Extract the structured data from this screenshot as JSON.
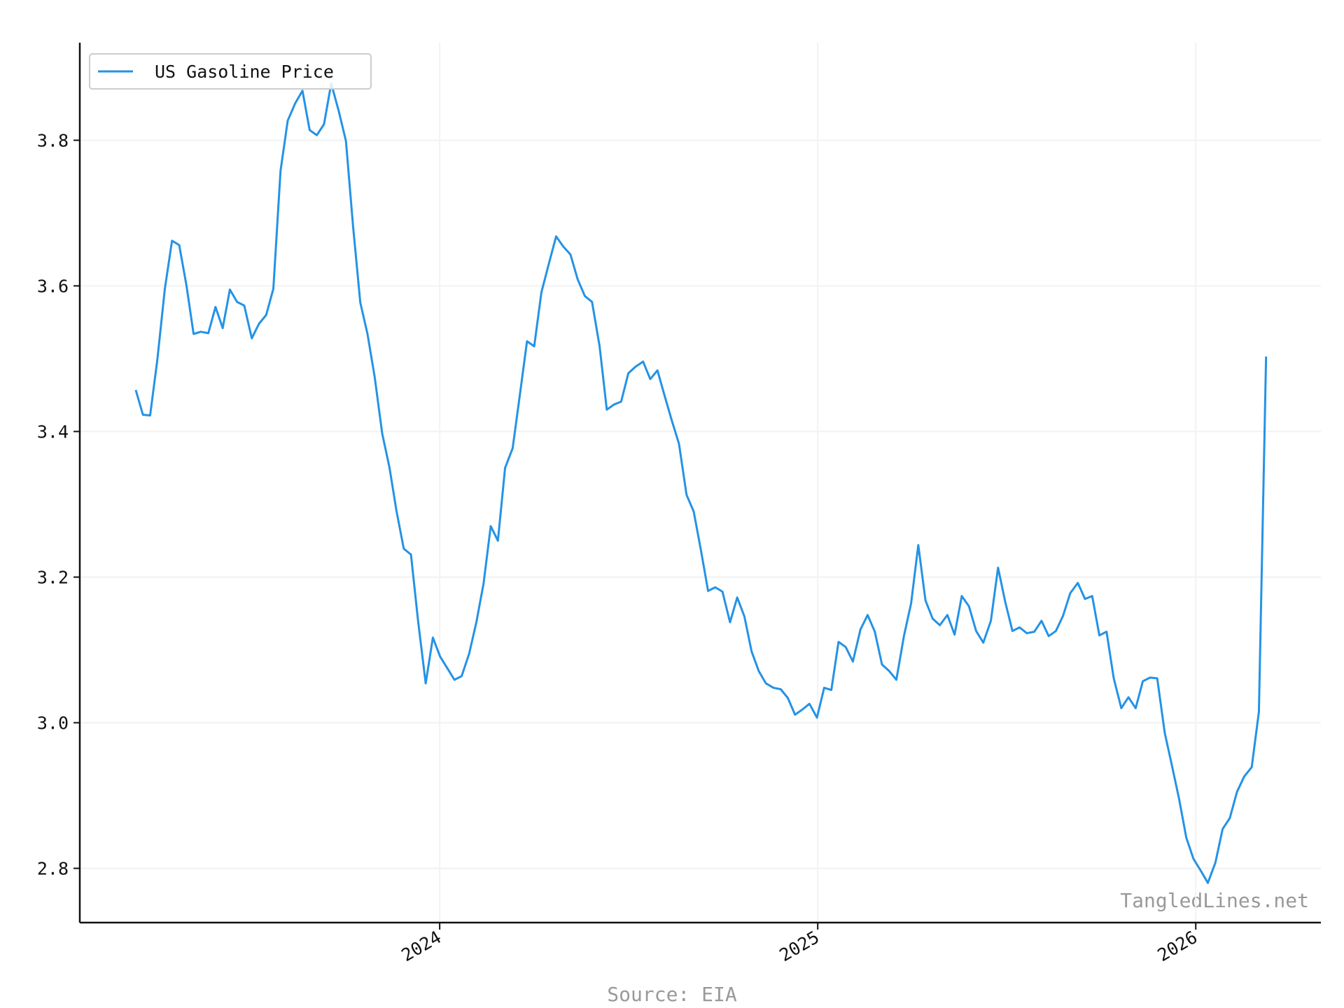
{
  "chart_data": {
    "type": "line",
    "watermark": "TangledLines.net",
    "source": "Source: EIA",
    "legend": "upper left",
    "grid": true,
    "xlim": [
      2023.048,
      2026.331
    ],
    "xticks": [
      2024,
      2025,
      2026
    ],
    "ylim": [
      2.7255,
      3.934
    ],
    "yticks": [
      {
        "value": 2.8,
        "label": "2.8"
      },
      {
        "value": 3.0,
        "label": "3.0"
      },
      {
        "value": 3.2,
        "label": "3.2"
      },
      {
        "value": 3.4,
        "label": "3.4"
      },
      {
        "value": 3.6,
        "label": "3.6"
      },
      {
        "value": 3.8,
        "label": "3.8"
      }
    ],
    "x": [
      2023.196,
      2023.215,
      2023.234,
      2023.253,
      2023.273,
      2023.292,
      2023.311,
      2023.33,
      2023.349,
      2023.368,
      2023.388,
      2023.407,
      2023.426,
      2023.445,
      2023.464,
      2023.483,
      2023.503,
      2023.522,
      2023.541,
      2023.56,
      2023.579,
      2023.598,
      2023.618,
      2023.637,
      2023.656,
      2023.675,
      2023.694,
      2023.713,
      2023.733,
      2023.752,
      2023.771,
      2023.79,
      2023.809,
      2023.828,
      2023.848,
      2023.867,
      2023.886,
      2023.905,
      2023.924,
      2023.943,
      2023.963,
      2023.982,
      2024.001,
      2024.02,
      2024.039,
      2024.058,
      2024.078,
      2024.097,
      2024.116,
      2024.135,
      2024.154,
      2024.173,
      2024.193,
      2024.212,
      2024.231,
      2024.25,
      2024.269,
      2024.288,
      2024.308,
      2024.327,
      2024.346,
      2024.365,
      2024.384,
      2024.403,
      2024.423,
      2024.442,
      2024.461,
      2024.48,
      2024.499,
      2024.518,
      2024.538,
      2024.557,
      2024.576,
      2024.595,
      2024.614,
      2024.633,
      2024.653,
      2024.672,
      2024.691,
      2024.71,
      2024.729,
      2024.748,
      2024.768,
      2024.787,
      2024.806,
      2024.825,
      2024.844,
      2024.863,
      2024.883,
      2024.902,
      2024.921,
      2024.94,
      2024.959,
      2024.978,
      2024.998,
      2025.017,
      2025.036,
      2025.055,
      2025.074,
      2025.093,
      2025.113,
      2025.132,
      2025.151,
      2025.17,
      2025.189,
      2025.208,
      2025.228,
      2025.247,
      2025.266,
      2025.285,
      2025.304,
      2025.323,
      2025.343,
      2025.362,
      2025.381,
      2025.4,
      2025.419,
      2025.438,
      2025.458,
      2025.477,
      2025.496,
      2025.515,
      2025.534,
      2025.553,
      2025.573,
      2025.592,
      2025.611,
      2025.63,
      2025.649,
      2025.668,
      2025.688,
      2025.707,
      2025.726,
      2025.745,
      2025.764,
      2025.783,
      2025.803,
      2025.822,
      2025.841,
      2025.86,
      2025.879,
      2025.898,
      2025.918,
      2025.937,
      2025.956,
      2025.975,
      2025.994,
      2026.013,
      2026.032,
      2026.052,
      2026.071,
      2026.09,
      2026.109,
      2026.128,
      2026.148,
      2026.167,
      2026.186
    ],
    "series": [
      {
        "name": "US Gasoline Price",
        "color": "#2492e6",
        "values": [
          3.457,
          3.423,
          3.422,
          3.498,
          3.596,
          3.662,
          3.656,
          3.601,
          3.534,
          3.537,
          3.535,
          3.571,
          3.542,
          3.595,
          3.578,
          3.573,
          3.528,
          3.548,
          3.56,
          3.596,
          3.758,
          3.827,
          3.851,
          3.868,
          3.814,
          3.807,
          3.822,
          3.878,
          3.84,
          3.799,
          3.681,
          3.577,
          3.534,
          3.475,
          3.397,
          3.351,
          3.29,
          3.239,
          3.231,
          3.139,
          3.054,
          3.117,
          3.091,
          3.075,
          3.059,
          3.064,
          3.095,
          3.138,
          3.191,
          3.27,
          3.25,
          3.35,
          3.377,
          3.45,
          3.524,
          3.517,
          3.591,
          3.629,
          3.668,
          3.654,
          3.643,
          3.609,
          3.586,
          3.578,
          3.517,
          3.43,
          3.437,
          3.441,
          3.48,
          3.489,
          3.496,
          3.472,
          3.484,
          3.449,
          3.415,
          3.383,
          3.313,
          3.29,
          3.237,
          3.181,
          3.186,
          3.18,
          3.138,
          3.172,
          3.146,
          3.098,
          3.071,
          3.054,
          3.048,
          3.046,
          3.034,
          3.011,
          3.018,
          3.026,
          3.007,
          3.048,
          3.045,
          3.111,
          3.104,
          3.084,
          3.128,
          3.148,
          3.125,
          3.08,
          3.071,
          3.059,
          3.119,
          3.164,
          3.244,
          3.168,
          3.143,
          3.134,
          3.148,
          3.121,
          3.174,
          3.16,
          3.126,
          3.11,
          3.14,
          3.213,
          3.166,
          3.126,
          3.131,
          3.123,
          3.125,
          3.14,
          3.119,
          3.126,
          3.147,
          3.178,
          3.192,
          3.17,
          3.174,
          3.12,
          3.125,
          3.061,
          3.02,
          3.035,
          3.02,
          3.057,
          3.062,
          3.061,
          2.986,
          2.941,
          2.895,
          2.842,
          2.813,
          2.797,
          2.78,
          2.808,
          2.854,
          2.869,
          2.905,
          2.926,
          2.939,
          3.015,
          3.503
        ]
      }
    ]
  }
}
